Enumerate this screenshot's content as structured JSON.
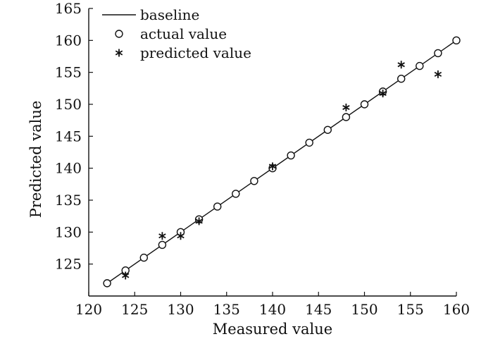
{
  "chart_data": {
    "type": "scatter",
    "xlabel": "Measured value",
    "ylabel": "Predicted value",
    "xlim": [
      120,
      160
    ],
    "ylim": [
      120,
      165
    ],
    "xticks": [
      120,
      125,
      130,
      135,
      140,
      145,
      150,
      155,
      160
    ],
    "yticks": [
      125,
      130,
      135,
      140,
      145,
      150,
      155,
      160,
      165
    ],
    "legend_position": "top-left",
    "grid": false,
    "series": [
      {
        "name": "baseline",
        "kind": "line",
        "x": [
          122,
          160
        ],
        "y": [
          122,
          160
        ]
      },
      {
        "name": "actual value",
        "kind": "circle-marker",
        "x": [
          122,
          124,
          126,
          128,
          130,
          132,
          134,
          136,
          138,
          140,
          142,
          144,
          146,
          148,
          150,
          152,
          154,
          156,
          158,
          160
        ],
        "y": [
          122,
          124,
          126,
          128,
          130,
          132,
          134,
          136,
          138,
          140,
          142,
          144,
          146,
          148,
          150,
          152,
          154,
          156,
          158,
          160
        ]
      },
      {
        "name": "predicted value",
        "kind": "asterisk-marker",
        "x": [
          124,
          128,
          130,
          132,
          140,
          148,
          152,
          154,
          158
        ],
        "y": [
          123.2,
          129.4,
          129.4,
          131.7,
          140.3,
          149.5,
          151.7,
          156.2,
          154.7
        ]
      }
    ]
  }
}
